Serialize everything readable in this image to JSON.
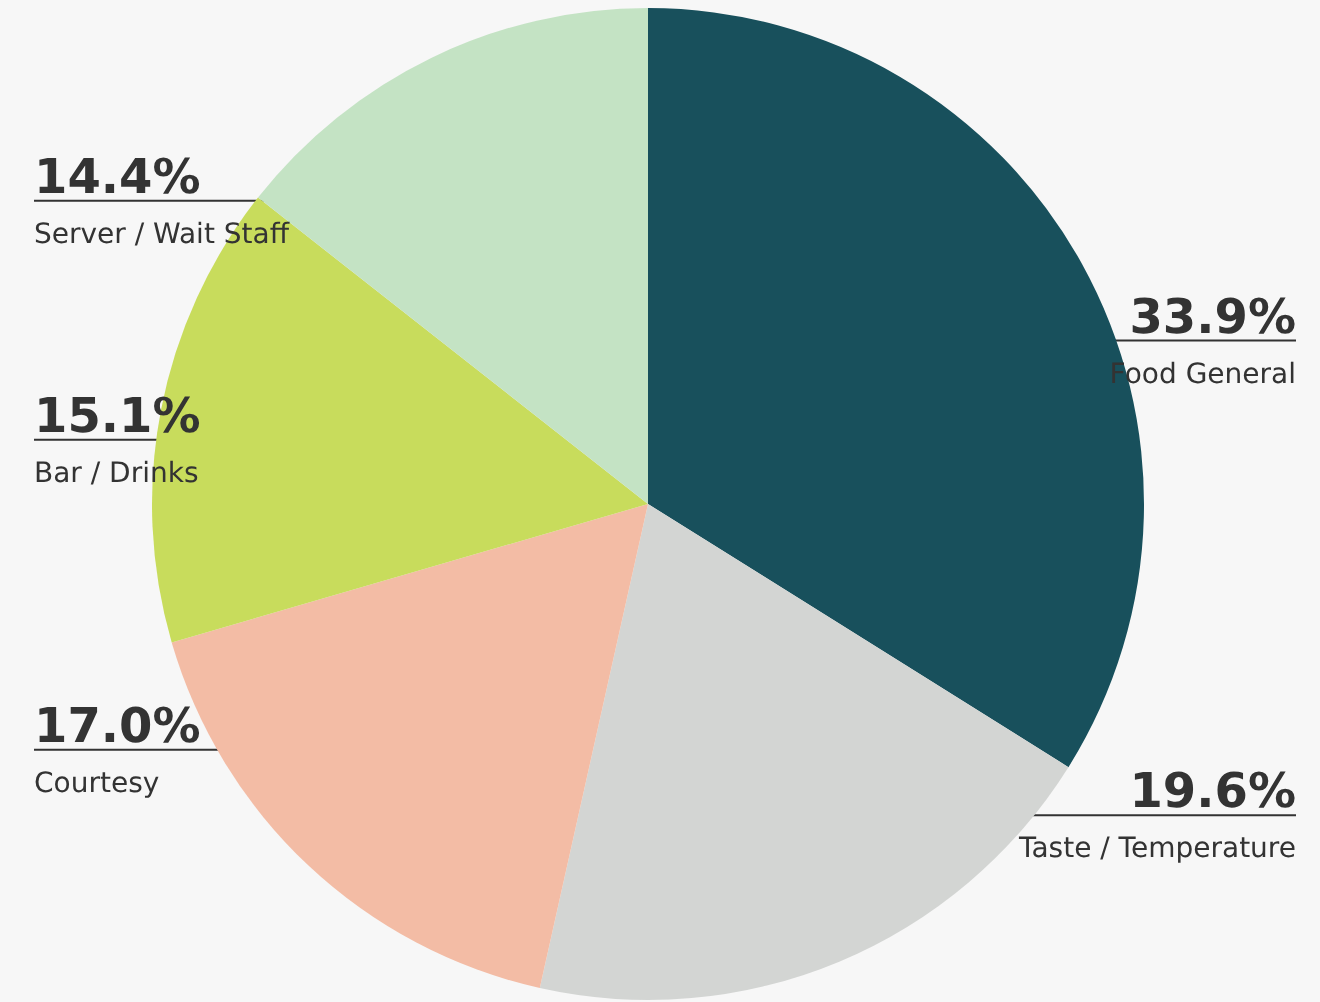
{
  "chart_data": {
    "type": "pie",
    "categories": [
      "Food General",
      "Taste / Temperature",
      "Courtesy",
      "Bar / Drinks",
      "Server / Wait Staff"
    ],
    "values": [
      33.9,
      19.6,
      17.0,
      15.1,
      14.4
    ],
    "value_labels": [
      "33.9%",
      "19.6%",
      "17.0%",
      "15.1%",
      "14.4%"
    ],
    "colors": [
      "#18505c",
      "#d3d5d3",
      "#f3bca5",
      "#c8dc5c",
      "#c4e3c4"
    ]
  }
}
